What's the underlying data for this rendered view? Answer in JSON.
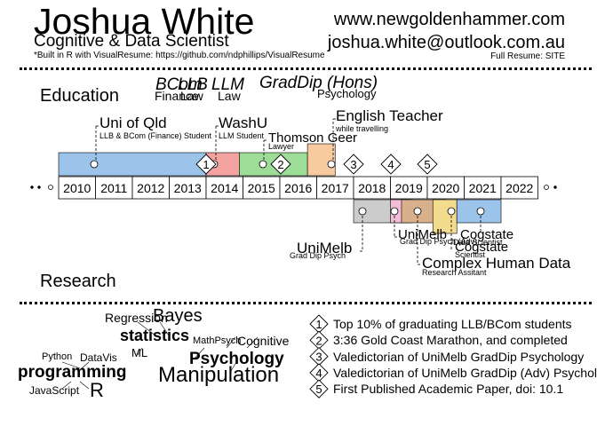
{
  "header": {
    "name": "Joshua White",
    "role": "Cognitive & Data Scientist",
    "built_in": "*Built in R with VisualResume: https://github.com/ndphillips/VisualResume",
    "website": "www.newgoldenhammer.com",
    "email": "joshua.white@outlook.com.au",
    "full_resume": "Full Resume: SITE"
  },
  "sections": {
    "education": "Education",
    "research": "Research"
  },
  "degrees": {
    "bcom": "BCom",
    "bcom_sub": "Finance",
    "llb": "LLB",
    "llb_sub": "Law",
    "llm": "LLM",
    "llm_sub": "Law",
    "graddip": "GradDip (Hons)",
    "graddip_sub": "Psychology"
  },
  "timeline": {
    "years": [
      "2010",
      "2011",
      "2012",
      "2013",
      "2014",
      "2015",
      "2016",
      "2017",
      "2018",
      "2019",
      "2020",
      "2021",
      "2022"
    ],
    "colors": {
      "blue": "#9cc3ea",
      "red": "#f4a3a0",
      "green": "#9ddd97",
      "orange": "#f9c9a0",
      "gray": "#cccccc",
      "pink": "#f2bdd8",
      "brown": "#d9b08c",
      "yellow": "#f3dc8e"
    },
    "top_events": [
      {
        "title": "Uni of Qld",
        "sub": "LLB & BCom (Finance) Student"
      },
      {
        "title": "WashU",
        "sub": "LLM Student"
      },
      {
        "title": "Thomson Geer",
        "sub": "Lawyer"
      },
      {
        "title": "English Teacher",
        "sub": "while travelling"
      }
    ],
    "bottom_events": [
      {
        "title": "UniMelb",
        "sub": "Grad Dip Psych"
      },
      {
        "title": "UniMelb",
        "sub": "Grad Dip Psych (Adv)"
      },
      {
        "title": "Cogstate",
        "sub": "Data Scientist"
      },
      {
        "title": "Cogstate",
        "sub": "Scientist"
      },
      {
        "title": "Complex Human Data",
        "sub": "Research Assitant"
      }
    ],
    "milestones": [
      "1",
      "2",
      "3",
      "4",
      "5"
    ]
  },
  "skills": [
    {
      "text": "Regression",
      "size": 14,
      "bold": false
    },
    {
      "text": "Bayes",
      "size": 20,
      "bold": false
    },
    {
      "text": "statistics",
      "size": 18,
      "bold": true
    },
    {
      "text": "ML",
      "size": 13,
      "bold": false
    },
    {
      "text": "MathPsych",
      "size": 11,
      "bold": false
    },
    {
      "text": "Cognitive",
      "size": 14,
      "bold": false
    },
    {
      "text": "Psychology",
      "size": 19,
      "bold": true
    },
    {
      "text": "Manipulation",
      "size": 24,
      "bold": false
    },
    {
      "text": "Python",
      "size": 11,
      "bold": false
    },
    {
      "text": "DataVis",
      "size": 12,
      "bold": false
    },
    {
      "text": "programming",
      "size": 19,
      "bold": true
    },
    {
      "text": "JavaScript",
      "size": 12,
      "bold": false
    },
    {
      "text": "R",
      "size": 22,
      "bold": false
    }
  ],
  "achievements": [
    {
      "num": "1",
      "text": "Top 10% of graduating LLB/BCom students"
    },
    {
      "num": "2",
      "text": "3:36 Gold Coast Marathon, and completed"
    },
    {
      "num": "3",
      "text": "Valedictorian of UniMelb GradDip Psychology"
    },
    {
      "num": "4",
      "text": "Valedictorian of UniMelb GradDip (Adv) Psychology"
    },
    {
      "num": "5",
      "text": "First Published Academic Paper, doi: 10.1"
    }
  ]
}
